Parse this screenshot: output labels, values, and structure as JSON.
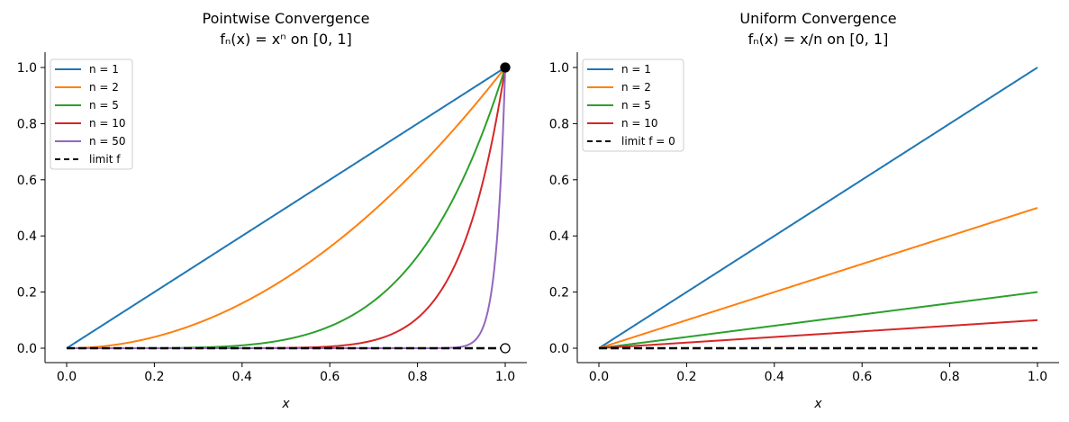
{
  "chart_data": [
    {
      "type": "line",
      "title": "Pointwise Convergence",
      "subtitle": "fₙ(x) = xⁿ on [0, 1]",
      "xlabel": "x",
      "ylabel": "",
      "xlim": [
        -0.05,
        1.05
      ],
      "ylim": [
        -0.05,
        1.05
      ],
      "xticks": [
        "0.0",
        "0.2",
        "0.4",
        "0.6",
        "0.8",
        "1.0"
      ],
      "yticks": [
        "0.0",
        "0.2",
        "0.4",
        "0.6",
        "0.8",
        "1.0"
      ],
      "formula": "x^n",
      "series": [
        {
          "name": "n = 1",
          "n": 1,
          "color": "#1f77b4"
        },
        {
          "name": "n = 2",
          "n": 2,
          "color": "#ff7f0e"
        },
        {
          "name": "n = 5",
          "n": 5,
          "color": "#2ca02c"
        },
        {
          "name": "n = 10",
          "n": 10,
          "color": "#d62728"
        },
        {
          "name": "n = 50",
          "n": 50,
          "color": "#9467bd"
        }
      ],
      "limit": {
        "name": "limit f",
        "y": 0,
        "color": "#000000",
        "style": "dashed"
      },
      "markers": [
        {
          "x": 1,
          "y": 1,
          "fill": "filled"
        },
        {
          "x": 1,
          "y": 0,
          "fill": "open"
        }
      ],
      "legend": "top-left",
      "grid": false
    },
    {
      "type": "line",
      "title": "Uniform Convergence",
      "subtitle": "fₙ(x) = x/n on [0, 1]",
      "xlabel": "x",
      "ylabel": "",
      "xlim": [
        -0.05,
        1.05
      ],
      "ylim": [
        -0.05,
        1.05
      ],
      "xticks": [
        "0.0",
        "0.2",
        "0.4",
        "0.6",
        "0.8",
        "1.0"
      ],
      "yticks": [
        "0.0",
        "0.2",
        "0.4",
        "0.6",
        "0.8",
        "1.0"
      ],
      "formula": "x/n",
      "series": [
        {
          "name": "n = 1",
          "n": 1,
          "color": "#1f77b4"
        },
        {
          "name": "n = 2",
          "n": 2,
          "color": "#ff7f0e"
        },
        {
          "name": "n = 5",
          "n": 5,
          "color": "#2ca02c"
        },
        {
          "name": "n = 10",
          "n": 10,
          "color": "#d62728"
        }
      ],
      "limit": {
        "name": "limit f = 0",
        "y": 0,
        "color": "#000000",
        "style": "dashed"
      },
      "markers": [],
      "legend": "top-left",
      "grid": false
    }
  ]
}
